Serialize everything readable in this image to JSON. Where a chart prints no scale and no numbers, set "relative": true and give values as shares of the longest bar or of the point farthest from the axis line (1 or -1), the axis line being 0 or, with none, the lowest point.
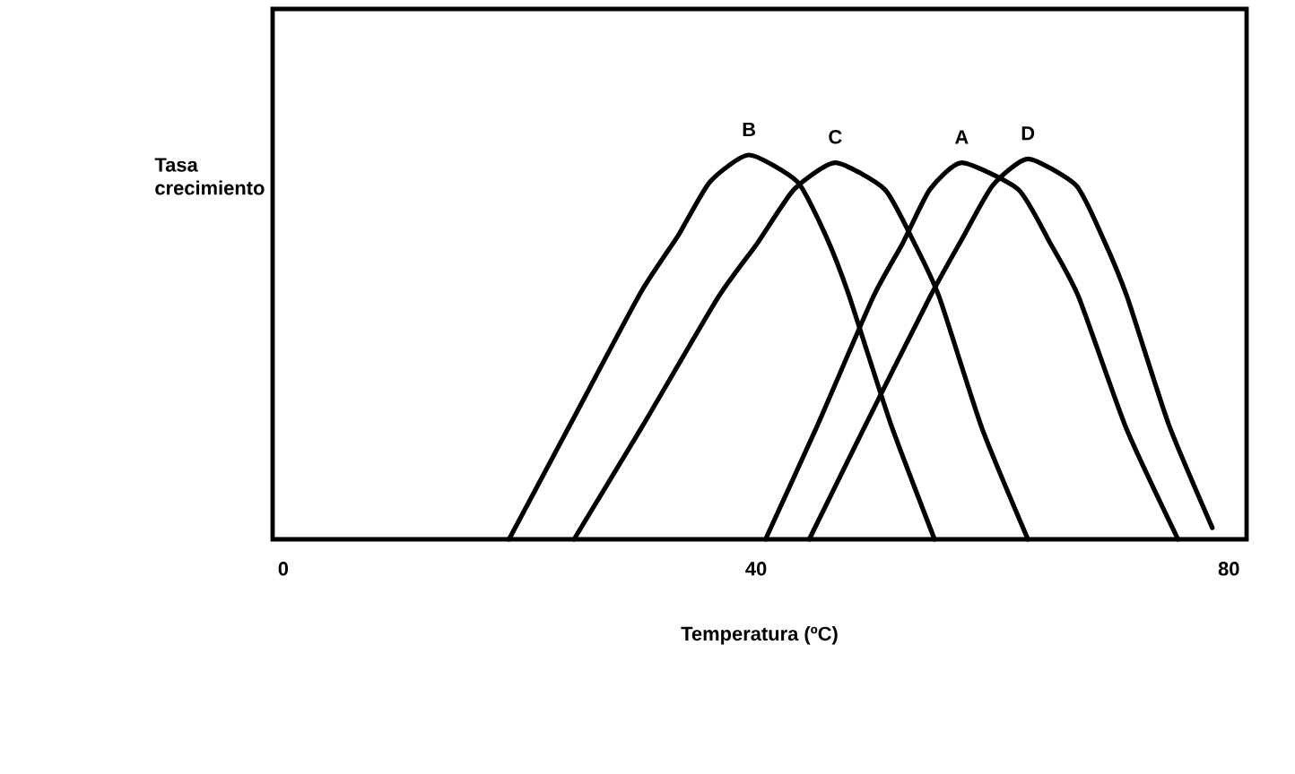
{
  "chart_data": {
    "type": "line",
    "relative": true,
    "xlabel": "Temperatura (ºC)",
    "ylabel": "Tasa crecimiento",
    "xlim": [
      -0.9,
      81.5
    ],
    "xticks": [
      0,
      40,
      80
    ],
    "legend": false,
    "marker": "none",
    "line_style": "solid",
    "series": [
      {
        "name": "A",
        "color": "#000000",
        "x": [
          40.8,
          45.1,
          49.9,
          52.4,
          54.7,
          57.4,
          62.2,
          64.9,
          67.3,
          71.3,
          75.7
        ],
        "values": [
          0,
          0.29,
          0.63,
          0.77,
          0.91,
          0.98,
          0.91,
          0.77,
          0.63,
          0.29,
          0
        ]
      },
      {
        "name": "B",
        "color": "#000000",
        "x": [
          19.1,
          24.3,
          30.2,
          33.4,
          36.1,
          39.4,
          43.5,
          45.9,
          47.8,
          51.4,
          55.1
        ],
        "values": [
          0,
          0.3,
          0.64,
          0.79,
          0.93,
          1,
          0.93,
          0.79,
          0.64,
          0.3,
          0
        ]
      },
      {
        "name": "C",
        "color": "#000000",
        "x": [
          24.6,
          30.3,
          36.8,
          40.1,
          43.2,
          46.7,
          50.9,
          53.4,
          55.5,
          59.1,
          63.0
        ],
        "values": [
          0,
          0.29,
          0.63,
          0.77,
          0.91,
          0.98,
          0.91,
          0.77,
          0.63,
          0.29,
          0
        ]
      },
      {
        "name": "D",
        "color": "#000000",
        "x": [
          44.5,
          49.3,
          54.7,
          57.4,
          60.0,
          63.0,
          67.1,
          69.4,
          71.4,
          74.9,
          78.6
        ],
        "values": [
          0,
          0.3,
          0.63,
          0.78,
          0.92,
          0.99,
          0.92,
          0.78,
          0.63,
          0.3,
          0.03
        ]
      }
    ]
  }
}
